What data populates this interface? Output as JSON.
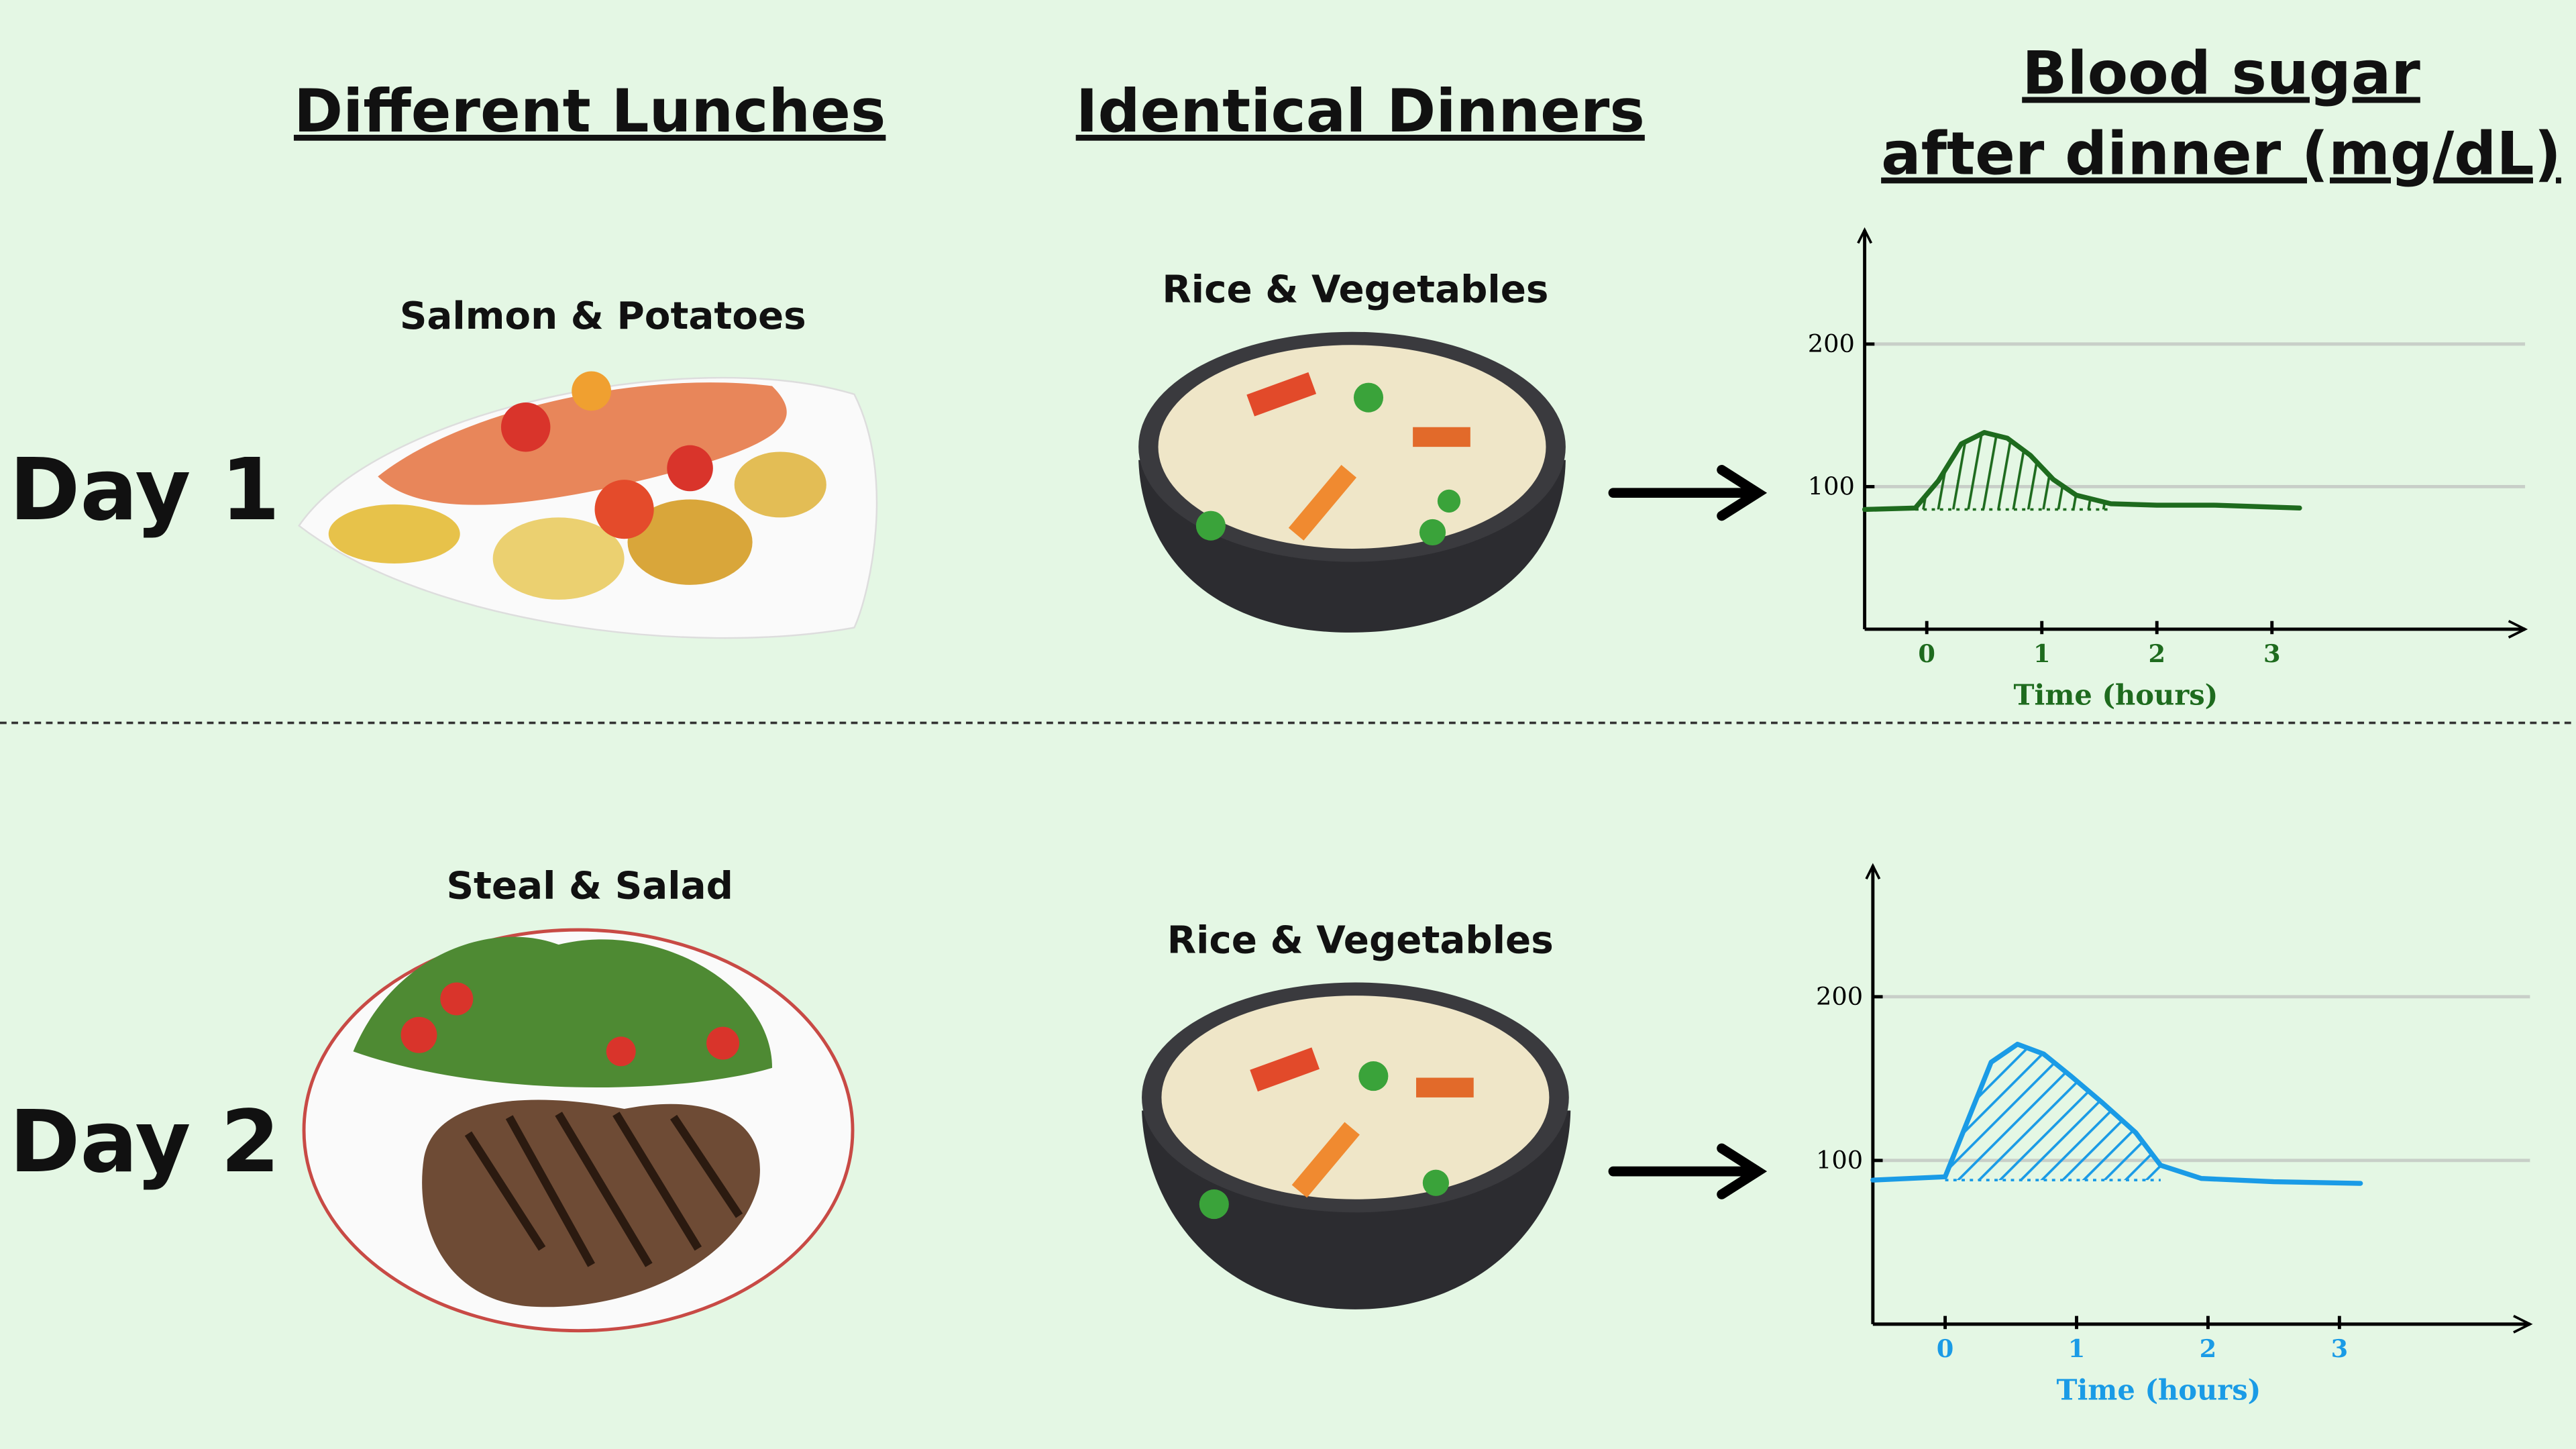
{
  "headers": {
    "lunches": "Different Lunches",
    "dinners": "Identical Dinners",
    "blood_sugar": [
      "Blood sugar",
      "after dinner (mg/dL)"
    ]
  },
  "rows": [
    {
      "day": "Day 1",
      "lunch": "Salmon & Potatoes",
      "dinner": "Rice & Vegetables"
    },
    {
      "day": "Day 2",
      "lunch": "Steal & Salad",
      "dinner": "Rice & Vegetables"
    }
  ],
  "chart_data": [
    {
      "type": "line",
      "x_label": "Time (hours)",
      "x": [
        -0.54,
        -0.1,
        0.1,
        0.3,
        0.5,
        0.7,
        0.9,
        1.1,
        1.3,
        1.6,
        2.0,
        2.5,
        3.24
      ],
      "series": [
        {
          "color": "#1e6b1e",
          "values": [
            84,
            85,
            104,
            130,
            138,
            134,
            122,
            105,
            94,
            88,
            87,
            87,
            85
          ]
        }
      ],
      "xlim": [
        -0.54,
        5.2
      ],
      "ylim": [
        0,
        280
      ],
      "xticks": [
        0,
        1,
        2,
        3
      ],
      "yticks": [
        100,
        200
      ],
      "grid": true
    },
    {
      "type": "line",
      "x_label": "Time (hours)",
      "x": [
        -0.55,
        0,
        0.15,
        0.35,
        0.55,
        0.75,
        0.95,
        1.2,
        1.45,
        1.64,
        1.95,
        2.5,
        3.16
      ],
      "series": [
        {
          "color": "#1a9be6",
          "values": [
            88,
            90,
            120,
            160,
            171,
            165,
            152,
            135,
            117,
            97,
            89,
            87,
            86
          ]
        }
      ],
      "xlim": [
        -0.55,
        4.45
      ],
      "ylim": [
        0,
        280
      ],
      "xticks": [
        0,
        1,
        2,
        3
      ],
      "yticks": [
        100,
        200
      ],
      "grid": true
    }
  ]
}
